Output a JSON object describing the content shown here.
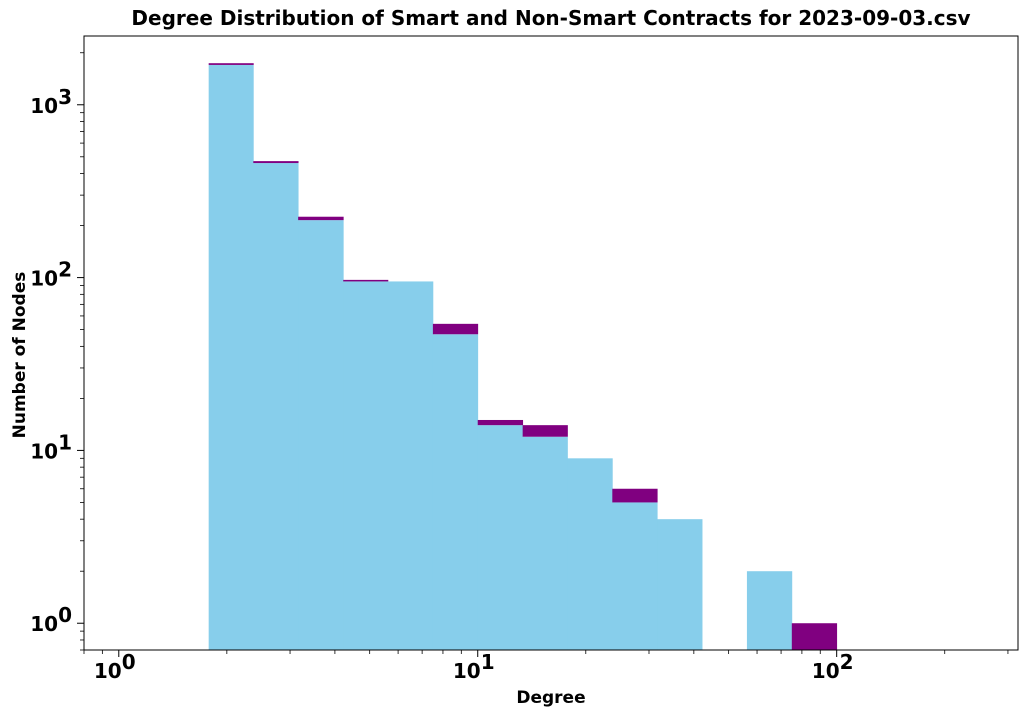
{
  "chart_data": {
    "type": "bar",
    "title": "Degree Distribution of Smart and Non-Smart Contracts for 2023-09-03.csv",
    "xlabel": "Degree",
    "ylabel": "Number of Nodes",
    "xscale": "log",
    "yscale": "log",
    "xlim": [
      0.8,
      320
    ],
    "ylim": [
      0.7,
      2500
    ],
    "grid": false,
    "stacked": true,
    "x_ticks": [
      {
        "base": "10",
        "exp": "0"
      },
      {
        "base": "10",
        "exp": "1"
      },
      {
        "base": "10",
        "exp": "2"
      }
    ],
    "y_ticks": [
      {
        "base": "10",
        "exp": "0"
      },
      {
        "base": "10",
        "exp": "1"
      },
      {
        "base": "10",
        "exp": "2"
      },
      {
        "base": "10",
        "exp": "3"
      }
    ],
    "bin_edges": [
      1.78,
      2.37,
      3.16,
      4.22,
      5.62,
      7.5,
      10.0,
      13.34,
      17.78,
      23.71,
      31.62,
      42.17,
      56.23,
      74.99,
      100.0
    ],
    "series": [
      {
        "color": "#87CEEB",
        "values": [
          1700,
          460,
          215,
          95,
          95,
          47,
          14,
          12,
          9,
          5,
          4,
          0,
          2,
          0
        ]
      },
      {
        "color": "#800080",
        "values": [
          40,
          12,
          10,
          2,
          0,
          7,
          1,
          2,
          0,
          1,
          0,
          0,
          0,
          1
        ]
      }
    ]
  }
}
